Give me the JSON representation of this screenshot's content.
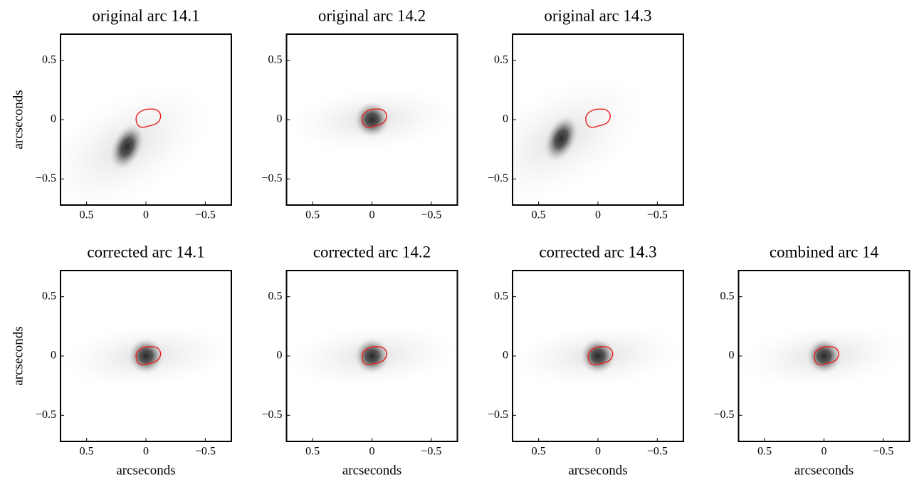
{
  "chart_data": [
    {
      "type": "image",
      "title": "original arc 14.1",
      "ylabel": "arcseconds",
      "xlim": [
        0.72,
        -0.72
      ],
      "ylim": [
        -0.72,
        0.72
      ],
      "xticks": [
        0.5,
        0,
        {
          "value": -0.5,
          "label": "−0.5"
        }
      ],
      "yticks": [
        {
          "value": -0.5,
          "label": "−0.5"
        },
        0,
        0.5
      ],
      "blob": {
        "x": 0.16,
        "y": -0.23
      },
      "contour": {
        "x": -0.02,
        "y": 0.01
      }
    },
    {
      "type": "image",
      "title": "original arc 14.2",
      "xlim": [
        0.72,
        -0.72
      ],
      "ylim": [
        -0.72,
        0.72
      ],
      "xticks": [
        0.5,
        0,
        {
          "value": -0.5,
          "label": "−0.5"
        }
      ],
      "yticks": [
        {
          "value": -0.5,
          "label": "−0.5"
        },
        0,
        0.5
      ],
      "blob": {
        "x": 0.0,
        "y": 0.0
      },
      "contour": {
        "x": -0.02,
        "y": 0.01
      }
    },
    {
      "type": "image",
      "title": "original arc 14.3",
      "xlim": [
        0.72,
        -0.72
      ],
      "ylim": [
        -0.72,
        0.72
      ],
      "xticks": [
        0.5,
        0,
        {
          "value": -0.5,
          "label": "−0.5"
        }
      ],
      "yticks": [
        {
          "value": -0.5,
          "label": "−0.5"
        },
        0,
        0.5
      ],
      "blob": {
        "x": 0.31,
        "y": -0.16
      },
      "contour": {
        "x": 0.0,
        "y": 0.01
      }
    },
    {
      "type": "image",
      "title": "corrected arc 14.1",
      "xlabel": "arcseconds",
      "ylabel": "arcseconds",
      "xlim": [
        0.72,
        -0.72
      ],
      "ylim": [
        -0.72,
        0.72
      ],
      "xticks": [
        0.5,
        0,
        {
          "value": -0.5,
          "label": "−0.5"
        }
      ],
      "yticks": [
        {
          "value": -0.5,
          "label": "−0.5"
        },
        0,
        0.5
      ],
      "blob": {
        "x": 0.0,
        "y": 0.0
      },
      "contour": {
        "x": -0.02,
        "y": 0.0
      }
    },
    {
      "type": "image",
      "title": "corrected arc 14.2",
      "xlabel": "arcseconds",
      "xlim": [
        0.72,
        -0.72
      ],
      "ylim": [
        -0.72,
        0.72
      ],
      "xticks": [
        0.5,
        0,
        {
          "value": -0.5,
          "label": "−0.5"
        }
      ],
      "yticks": [
        {
          "value": -0.5,
          "label": "−0.5"
        },
        0,
        0.5
      ],
      "blob": {
        "x": 0.0,
        "y": 0.0
      },
      "contour": {
        "x": -0.02,
        "y": 0.0
      }
    },
    {
      "type": "image",
      "title": "corrected arc 14.3",
      "xlabel": "arcseconds",
      "xlim": [
        0.72,
        -0.72
      ],
      "ylim": [
        -0.72,
        0.72
      ],
      "xticks": [
        0.5,
        0,
        {
          "value": -0.5,
          "label": "−0.5"
        }
      ],
      "yticks": [
        {
          "value": -0.5,
          "label": "−0.5"
        },
        0,
        0.5
      ],
      "blob": {
        "x": 0.0,
        "y": 0.0
      },
      "contour": {
        "x": -0.02,
        "y": 0.0
      }
    },
    {
      "type": "image",
      "title": "combined arc 14",
      "xlabel": "arcseconds",
      "xlim": [
        0.72,
        -0.72
      ],
      "ylim": [
        -0.72,
        0.72
      ],
      "xticks": [
        0.5,
        0,
        {
          "value": -0.5,
          "label": "−0.5"
        }
      ],
      "yticks": [
        {
          "value": -0.5,
          "label": "−0.5"
        },
        0,
        0.5
      ],
      "blob": {
        "x": 0.0,
        "y": 0.0
      },
      "contour": {
        "x": -0.02,
        "y": 0.0
      }
    }
  ]
}
